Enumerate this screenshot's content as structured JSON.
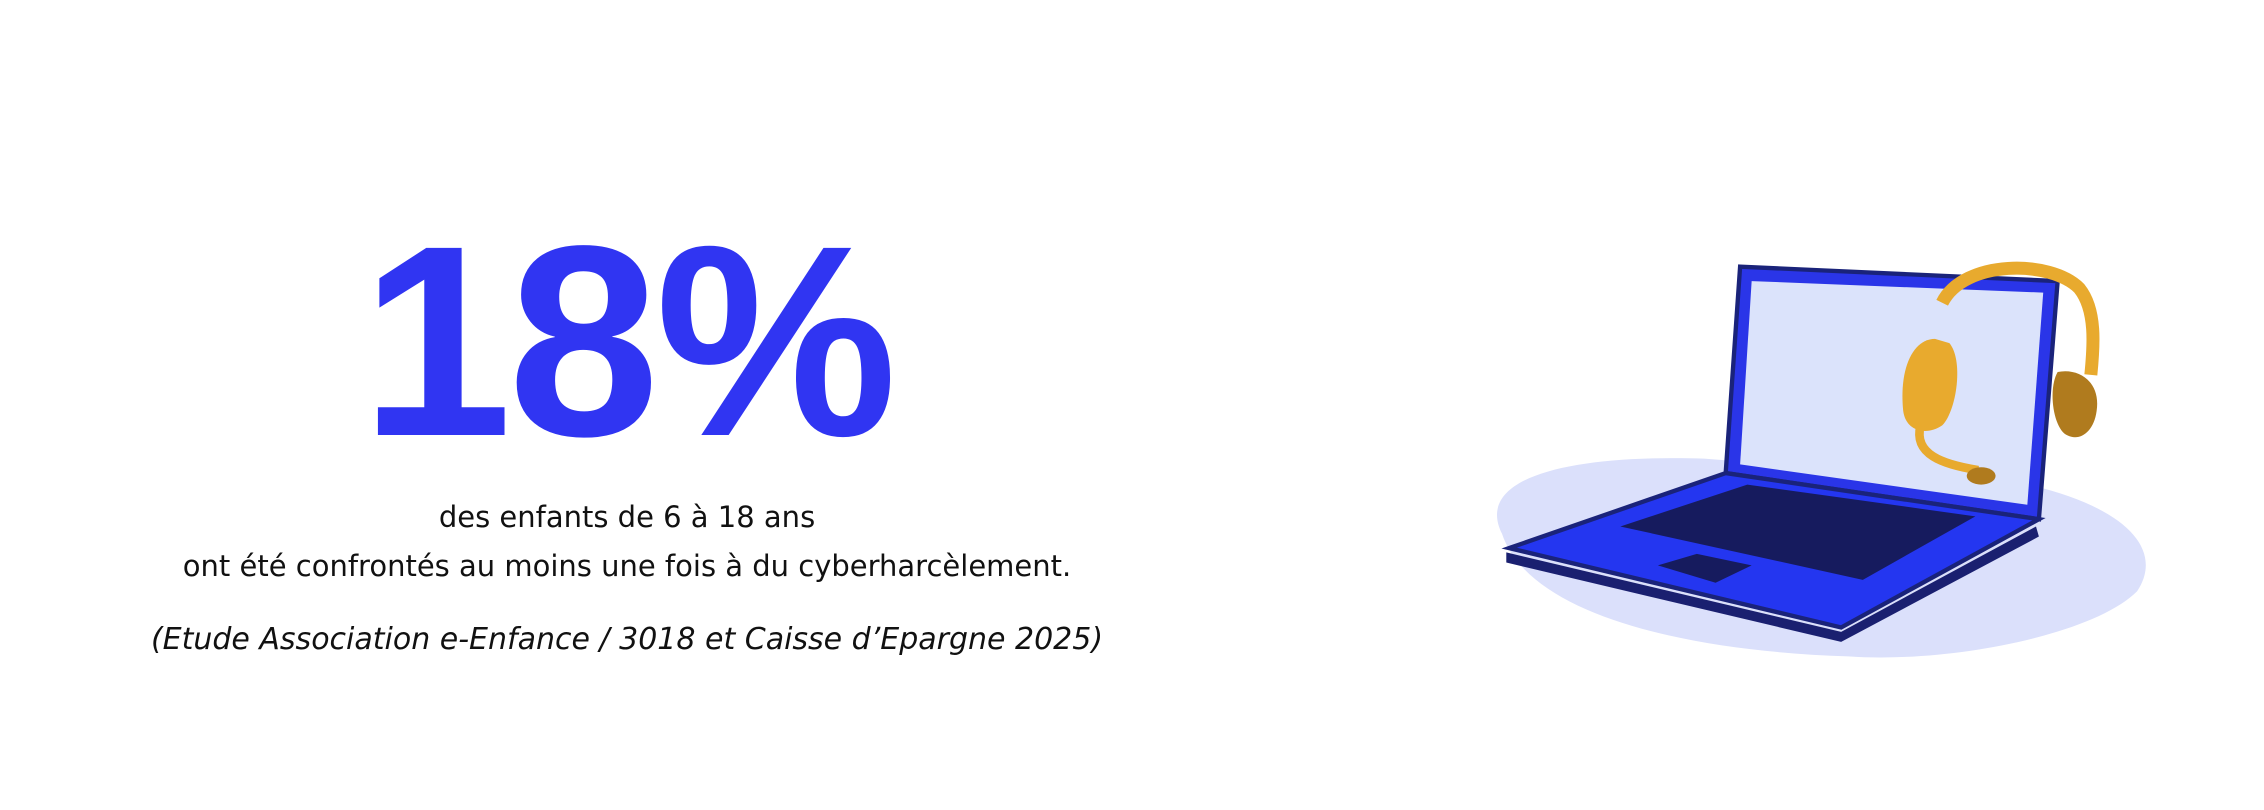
{
  "stat": {
    "value": "18%",
    "lines": [
      "des enfants de 6 à 18 ans",
      "ont été confrontés au moins une fois à du cyberharcèlement."
    ],
    "source": "(Etude Association e-Enfance / 3018 et Caisse d’Epargne 2025)"
  }
}
